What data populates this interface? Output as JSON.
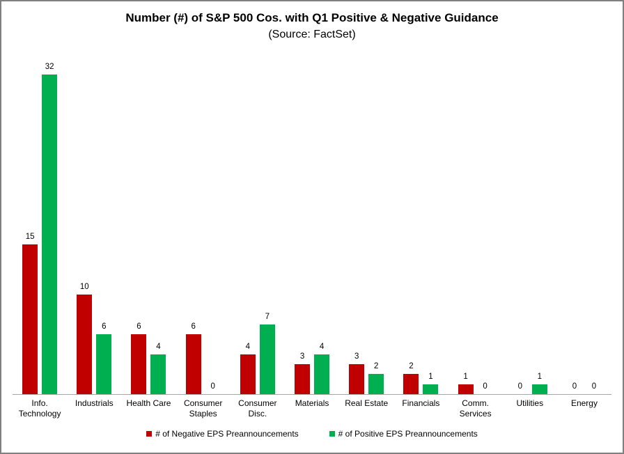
{
  "header": {
    "title": "Number (#) of S&P 500 Cos. with Q1 Positive & Negative Guidance",
    "subtitle": "(Source: FactSet)"
  },
  "colors": {
    "negative": "#c00000",
    "positive": "#00b050",
    "axis_line": "#a6a6a6",
    "figure_border": "#808080",
    "background": "#ffffff",
    "text": "#000000"
  },
  "chart_data": {
    "type": "bar",
    "title": "Number (#) of S&P 500 Cos. with Q1 Positive & Negative Guidance",
    "subtitle": "(Source: FactSet)",
    "categories": [
      "Info.\nTechnology",
      "Industrials",
      "Health Care",
      "Consumer\nStaples",
      "Consumer\nDisc.",
      "Materials",
      "Real Estate",
      "Financials",
      "Comm.\nServices",
      "Utilities",
      "Energy"
    ],
    "series": [
      {
        "name": "# of Negative EPS Preannouncements",
        "color": "#c00000",
        "values": [
          15,
          10,
          6,
          6,
          4,
          3,
          3,
          2,
          1,
          0,
          0
        ]
      },
      {
        "name": "# of Positive EPS Preannouncements",
        "color": "#00b050",
        "values": [
          32,
          6,
          4,
          0,
          7,
          4,
          2,
          1,
          0,
          1,
          0
        ]
      }
    ],
    "xlabel": "",
    "ylabel": "",
    "ylim": [
      0,
      32
    ],
    "grid": false,
    "data_labels": true,
    "legend_position": "bottom"
  }
}
